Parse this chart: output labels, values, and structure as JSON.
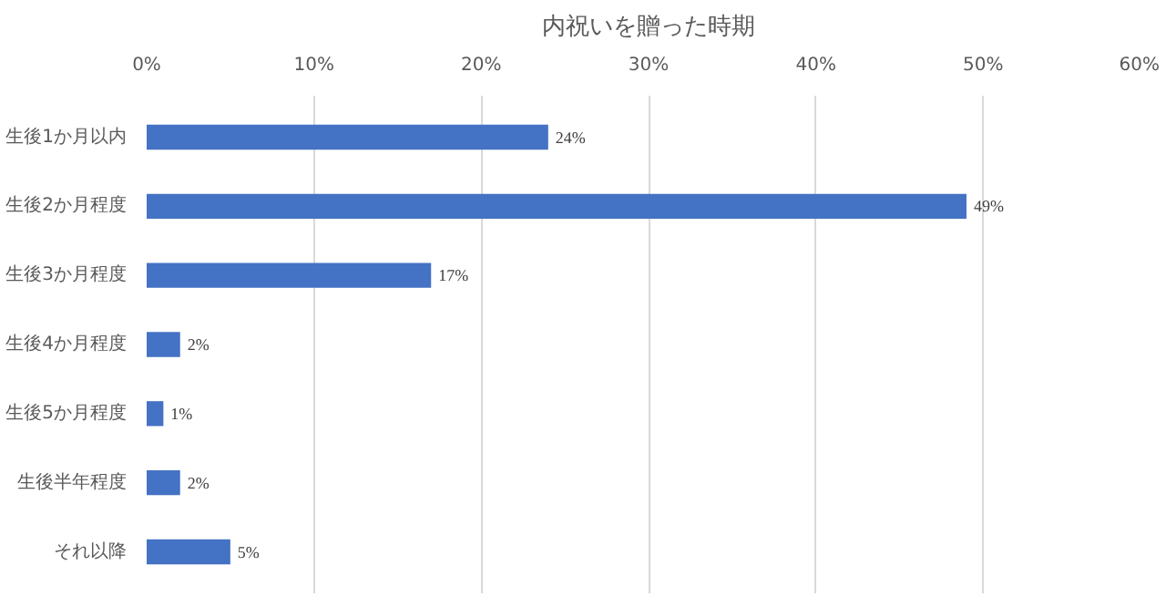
{
  "chart_data": {
    "type": "bar",
    "orientation": "horizontal",
    "title": "内祝いを贈った時期",
    "categories": [
      "生後1か月以内",
      "生後2か月程度",
      "生後3か月程度",
      "生後4か月程度",
      "生後5か月程度",
      "生後半年程度",
      "それ以降"
    ],
    "values": [
      24,
      49,
      17,
      2,
      1,
      2,
      5
    ],
    "value_labels": [
      "24%",
      "49%",
      "17%",
      "2%",
      "1%",
      "2%",
      "5%"
    ],
    "color": "#4472c4",
    "xlim": [
      0,
      60
    ],
    "xticks": [
      {
        "value": 0,
        "label": "0%"
      },
      {
        "value": 10,
        "label": "10%"
      },
      {
        "value": 20,
        "label": "20%"
      },
      {
        "value": 30,
        "label": "30%"
      },
      {
        "value": 40,
        "label": "40%"
      },
      {
        "value": 50,
        "label": "50%"
      },
      {
        "value": 60,
        "label": "60%"
      }
    ],
    "grid": "x"
  }
}
